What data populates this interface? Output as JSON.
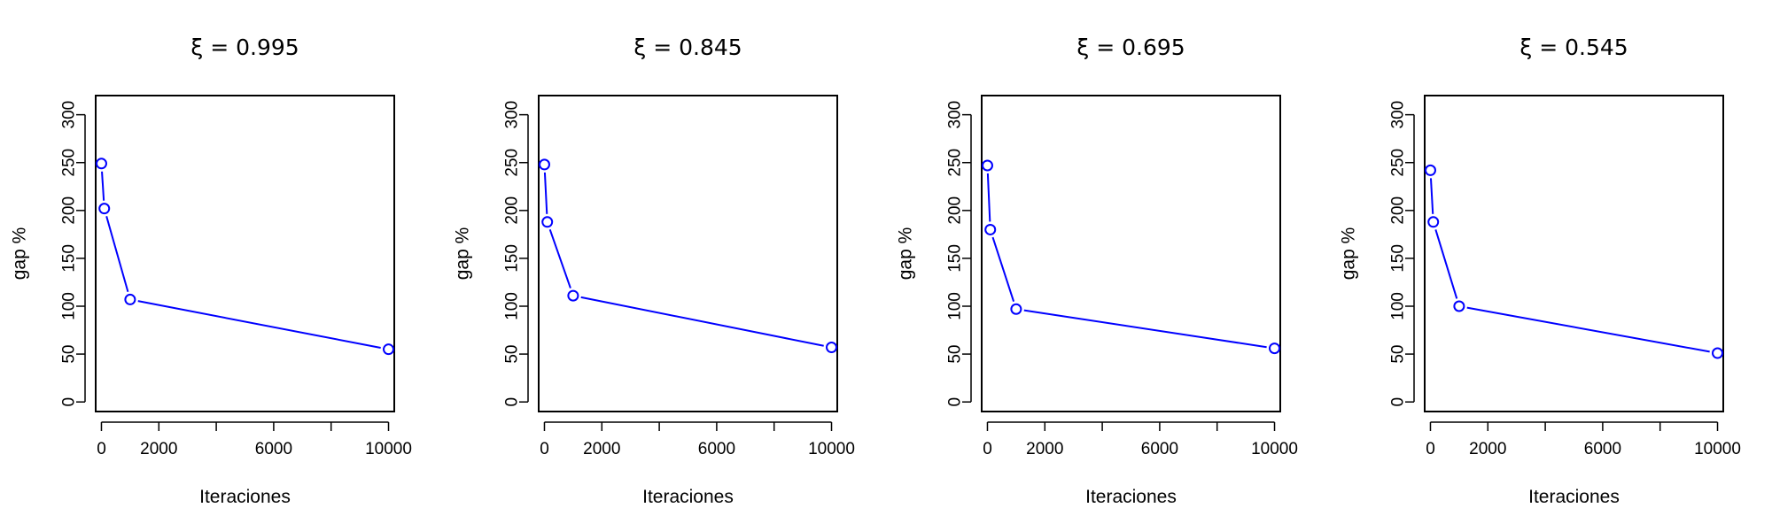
{
  "chart_data": [
    {
      "type": "line",
      "title": "ξ = 0.995",
      "xlabel": "Iteraciones",
      "ylabel": "gap %",
      "xlim": [
        -200,
        10200
      ],
      "ylim": [
        -10,
        320
      ],
      "xticks": [
        0,
        2000,
        6000,
        10000
      ],
      "xminor_ticks": [
        4000,
        8000
      ],
      "yticks": [
        0,
        50,
        100,
        150,
        200,
        250,
        300
      ],
      "grid": false,
      "series": [
        {
          "color": "#0000ff",
          "x": [
            0,
            100,
            1000,
            10000
          ],
          "y": [
            249,
            202,
            107,
            55
          ]
        }
      ]
    },
    {
      "type": "line",
      "title": "ξ = 0.845",
      "xlabel": "Iteraciones",
      "ylabel": "gap %",
      "xlim": [
        -200,
        10200
      ],
      "ylim": [
        -10,
        320
      ],
      "xticks": [
        0,
        2000,
        6000,
        10000
      ],
      "xminor_ticks": [
        4000,
        8000
      ],
      "yticks": [
        0,
        50,
        100,
        150,
        200,
        250,
        300
      ],
      "grid": false,
      "series": [
        {
          "color": "#0000ff",
          "x": [
            0,
            100,
            1000,
            10000
          ],
          "y": [
            248,
            188,
            111,
            57
          ]
        }
      ]
    },
    {
      "type": "line",
      "title": "ξ = 0.695",
      "xlabel": "Iteraciones",
      "ylabel": "gap %",
      "xlim": [
        -200,
        10200
      ],
      "ylim": [
        -10,
        320
      ],
      "xticks": [
        0,
        2000,
        6000,
        10000
      ],
      "xminor_ticks": [
        4000,
        8000
      ],
      "yticks": [
        0,
        50,
        100,
        150,
        200,
        250,
        300
      ],
      "grid": false,
      "series": [
        {
          "color": "#0000ff",
          "x": [
            0,
            100,
            1000,
            10000
          ],
          "y": [
            247,
            180,
            97,
            56
          ]
        }
      ]
    },
    {
      "type": "line",
      "title": "ξ = 0.545",
      "xlabel": "Iteraciones",
      "ylabel": "gap %",
      "xlim": [
        -200,
        10200
      ],
      "ylim": [
        -10,
        320
      ],
      "xticks": [
        0,
        2000,
        6000,
        10000
      ],
      "xminor_ticks": [
        4000,
        8000
      ],
      "yticks": [
        0,
        50,
        100,
        150,
        200,
        250,
        300
      ],
      "grid": false,
      "series": [
        {
          "color": "#0000ff",
          "x": [
            0,
            100,
            1000,
            10000
          ],
          "y": [
            242,
            188,
            100,
            51
          ]
        }
      ]
    }
  ]
}
